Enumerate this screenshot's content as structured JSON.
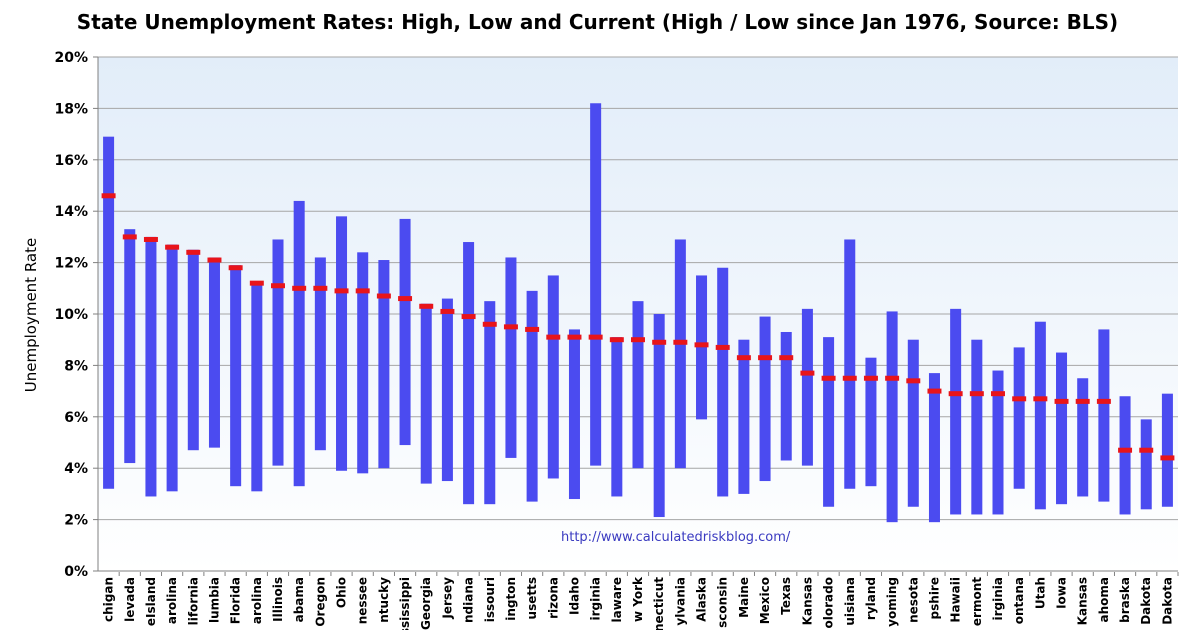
{
  "chart_data": {
    "type": "bar",
    "title": "State Unemployment Rates: High, Low and Current (High / Low since Jan 1976, Source: BLS)",
    "ylabel": "Unemployment Rate",
    "ylim": [
      0,
      20
    ],
    "y_ticks": [
      "0%",
      "2%",
      "4%",
      "6%",
      "8%",
      "10%",
      "12%",
      "14%",
      "16%",
      "18%",
      "20%"
    ],
    "grid": true,
    "annotation": "http://www.calculatedriskblog.com/",
    "colors": {
      "range_bar": "#4b4bf0",
      "current_marker": "#e8141a",
      "plot_bg_top": "#e2edf9",
      "plot_bg_bottom": "#ffffff",
      "gridline": "#a6a6a6"
    },
    "categories": [
      "chigan",
      "levada",
      "eIsland",
      "arolina",
      "lifornia",
      "lumbia",
      "Florida",
      "arolina",
      "Illinois",
      "abama",
      "Oregon",
      "Ohio",
      "nessee",
      "ntucky",
      "ssissippi",
      "Georgia",
      "Jersey",
      "ndiana",
      "issouri",
      "ington",
      "usetts",
      "rizona",
      "Idaho",
      "irginia",
      "laware",
      "w York",
      "necticut",
      "ylvania",
      "Alaska",
      "sconsin",
      "Maine",
      "Mexico",
      "Texas",
      "Kansas",
      "olorado",
      "uisiana",
      "ryland",
      "yoming",
      "nesota",
      "pshire",
      "Hawaii",
      "ermont",
      "irginia",
      "ontana",
      "Utah",
      "Iowa",
      "Kansas",
      "ahoma",
      "braska",
      "Dakota",
      "Dakota"
    ],
    "series": [
      {
        "name": "High",
        "values": [
          16.9,
          13.3,
          13.0,
          12.7,
          12.5,
          12.2,
          11.9,
          11.2,
          12.9,
          14.4,
          12.2,
          13.8,
          12.4,
          12.1,
          13.7,
          10.4,
          10.6,
          12.8,
          10.5,
          12.2,
          10.9,
          11.5,
          9.4,
          18.2,
          9.1,
          10.5,
          10.0,
          12.9,
          11.5,
          11.8,
          9.0,
          9.9,
          9.3,
          10.2,
          9.1,
          12.9,
          8.3,
          10.1,
          9.0,
          7.7,
          10.2,
          9.0,
          7.8,
          8.7,
          9.7,
          8.5,
          7.5,
          9.4,
          6.8,
          5.9,
          6.9
        ]
      },
      {
        "name": "Low",
        "values": [
          3.2,
          4.2,
          2.9,
          3.1,
          4.7,
          4.8,
          3.3,
          3.1,
          4.1,
          3.3,
          4.7,
          3.9,
          3.8,
          4.0,
          4.9,
          3.4,
          3.5,
          2.6,
          2.6,
          4.4,
          2.7,
          3.6,
          2.8,
          4.1,
          2.9,
          4.0,
          2.1,
          4.0,
          5.9,
          2.9,
          3.0,
          3.5,
          4.3,
          4.1,
          2.5,
          3.2,
          3.3,
          1.9,
          2.5,
          1.9,
          2.2,
          2.2,
          2.2,
          3.2,
          2.4,
          2.6,
          2.9,
          2.7,
          2.2,
          2.4,
          2.5
        ]
      },
      {
        "name": "Current",
        "values": [
          14.6,
          13.0,
          12.9,
          12.6,
          12.4,
          12.1,
          11.8,
          11.2,
          11.1,
          11.0,
          11.0,
          10.9,
          10.9,
          10.7,
          10.6,
          10.3,
          10.1,
          9.9,
          9.6,
          9.5,
          9.4,
          9.1,
          9.1,
          9.1,
          9.0,
          9.0,
          8.9,
          8.9,
          8.8,
          8.7,
          8.3,
          8.3,
          8.3,
          7.7,
          7.5,
          7.5,
          7.5,
          7.5,
          7.4,
          7.0,
          6.9,
          6.9,
          6.9,
          6.7,
          6.7,
          6.6,
          6.6,
          6.6,
          4.7,
          4.7,
          4.4
        ]
      }
    ]
  }
}
